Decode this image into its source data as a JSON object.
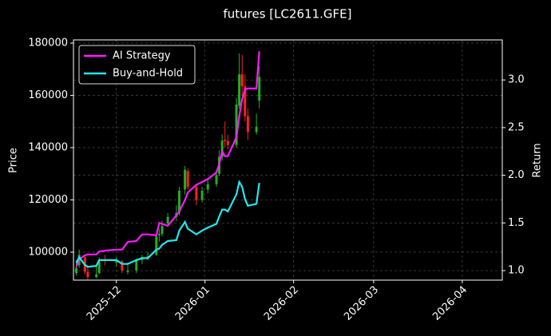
{
  "chart_data": {
    "type": "candlestick",
    "title": "futures [LC2611.GFE]",
    "y_label": "Price",
    "y2_label": "Return",
    "x": [
      "2025-11-17",
      "2025-11-18",
      "2025-11-20",
      "2025-11-21",
      "2025-11-24",
      "2025-11-25",
      "2025-11-27",
      "2025-12-01",
      "2025-12-03",
      "2025-12-05",
      "2025-12-08",
      "2025-12-10",
      "2025-12-12",
      "2025-12-15",
      "2025-12-16",
      "2025-12-17",
      "2025-12-19",
      "2025-12-22",
      "2025-12-23",
      "2025-12-25",
      "2025-12-26",
      "2025-12-29",
      "2025-12-31",
      "2026-01-02",
      "2026-01-05",
      "2026-01-06",
      "2026-01-07",
      "2026-01-08",
      "2026-01-09",
      "2026-01-12",
      "2026-01-13",
      "2026-01-14",
      "2026-01-15",
      "2026-01-16",
      "2026-01-19",
      "2026-01-20"
    ],
    "open": [
      92000,
      95000,
      98000,
      92500,
      90500,
      92000,
      97000,
      96000,
      96500,
      92500,
      93000,
      97000,
      98000,
      99000,
      106500,
      107000,
      111000,
      113500,
      115000,
      124000,
      131000,
      125000,
      120000,
      124000,
      126000,
      130000,
      136500,
      143000,
      142500,
      141000,
      156000,
      168000,
      163500,
      152000,
      146000,
      158000
    ],
    "high": [
      97000,
      101000,
      99000,
      94000,
      95000,
      98000,
      99000,
      98000,
      97000,
      96000,
      97500,
      99000,
      100000,
      107000,
      109000,
      112000,
      115000,
      118000,
      125000,
      133000,
      132000,
      126000,
      125000,
      128000,
      131000,
      139000,
      145000,
      150000,
      145000,
      159000,
      176000,
      175500,
      168000,
      155000,
      153000,
      171000
    ],
    "low": [
      91000,
      94000,
      91500,
      89500,
      90000,
      91500,
      95000,
      94500,
      92000,
      91500,
      92000,
      95500,
      97000,
      98500,
      104000,
      106000,
      110000,
      112000,
      114000,
      122000,
      124000,
      118000,
      119000,
      122500,
      125000,
      129000,
      135000,
      140000,
      139500,
      140000,
      155000,
      160000,
      150000,
      143000,
      145000,
      155000
    ],
    "close": [
      94000,
      99000,
      92500,
      90500,
      91500,
      96500,
      96700,
      96500,
      93000,
      93000,
      96800,
      98200,
      98500,
      106000,
      107000,
      110000,
      113500,
      115000,
      123500,
      131500,
      125000,
      120000,
      123500,
      126000,
      129500,
      136500,
      142700,
      142500,
      141000,
      156500,
      168000,
      163500,
      152000,
      146000,
      148000,
      167000
    ],
    "up_color": "#22b022",
    "down_color": "#ff2020",
    "series": [
      {
        "name": "AI Strategy",
        "color": "#ff19ff",
        "axis": "y2",
        "values": [
          1.04,
          1.12,
          1.16,
          1.17,
          1.17,
          1.2,
          1.21,
          1.22,
          1.22,
          1.3,
          1.31,
          1.38,
          1.38,
          1.37,
          1.5,
          1.49,
          1.47,
          1.58,
          1.62,
          1.74,
          1.82,
          1.9,
          1.93,
          1.96,
          2.03,
          2.12,
          2.25,
          2.2,
          2.2,
          2.4,
          2.62,
          2.8,
          2.9,
          2.91,
          2.91,
          3.3
        ]
      },
      {
        "name": "Buy-and-Hold",
        "color": "#22e8f0",
        "axis": "y2",
        "values": [
          1.08,
          1.14,
          1.06,
          1.04,
          1.05,
          1.11,
          1.11,
          1.11,
          1.07,
          1.07,
          1.11,
          1.13,
          1.13,
          1.22,
          1.23,
          1.27,
          1.31,
          1.32,
          1.42,
          1.51,
          1.44,
          1.38,
          1.42,
          1.45,
          1.49,
          1.57,
          1.64,
          1.64,
          1.62,
          1.8,
          1.93,
          1.88,
          1.75,
          1.68,
          1.7,
          1.92
        ]
      }
    ],
    "xlim": [
      "2025-11-16",
      "2026-04-15"
    ],
    "xticks": [
      "2025-12",
      "2026-01",
      "2026-02",
      "2026-03",
      "2026-04"
    ],
    "ylim": [
      89300,
      181200
    ],
    "yticks": [
      100000,
      120000,
      140000,
      160000,
      180000
    ],
    "y2lim": [
      0.9,
      3.42
    ],
    "y2ticks": [
      {
        "value": 1,
        "label": "1.0"
      },
      1.5,
      {
        "value": 2,
        "label": "2.0"
      },
      2.5,
      {
        "value": 3,
        "label": "3.0"
      }
    ],
    "grid": true,
    "legend": "upper left"
  }
}
